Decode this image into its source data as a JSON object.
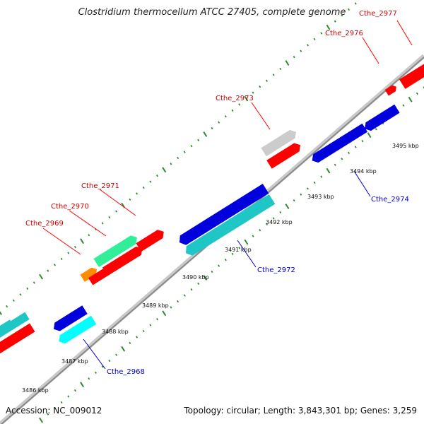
{
  "header": {
    "title": "Clostridium thermocellum ATCC 27405, complete genome"
  },
  "footer": {
    "accession": "Accession: NC_009012",
    "summary": "Topology: circular; Length: 3,843,301 bp; Genes: 3,259"
  },
  "colors": {
    "backbone": "#8c8c8c",
    "ring_dots": "#2e8b2e",
    "forward_label": "#cc0000",
    "reverse_label": "#0000cc",
    "red": "#ff0000",
    "blue": "#0000dd",
    "teal": "#1ec6c6",
    "cyan": "#00ffff",
    "orange": "#ff8c00",
    "green": "#33ee99",
    "gray": "#cccccc"
  },
  "scale_labels": [
    "3486 kbp",
    "3487 kbp",
    "3488 kbp",
    "3489 kbp",
    "3490 kbp",
    "3491 kbp",
    "3492 kbp",
    "3493 kbp",
    "3494 kbp",
    "3495 kbp"
  ],
  "gene_labels": {
    "forward": [
      "Cthe_2969",
      "Cthe_2970",
      "Cthe_2971",
      "Cthe_2973",
      "Cthe_2976",
      "Cthe_2977"
    ],
    "reverse": [
      "Cthe_2968",
      "Cthe_2972",
      "Cthe_2974"
    ]
  }
}
